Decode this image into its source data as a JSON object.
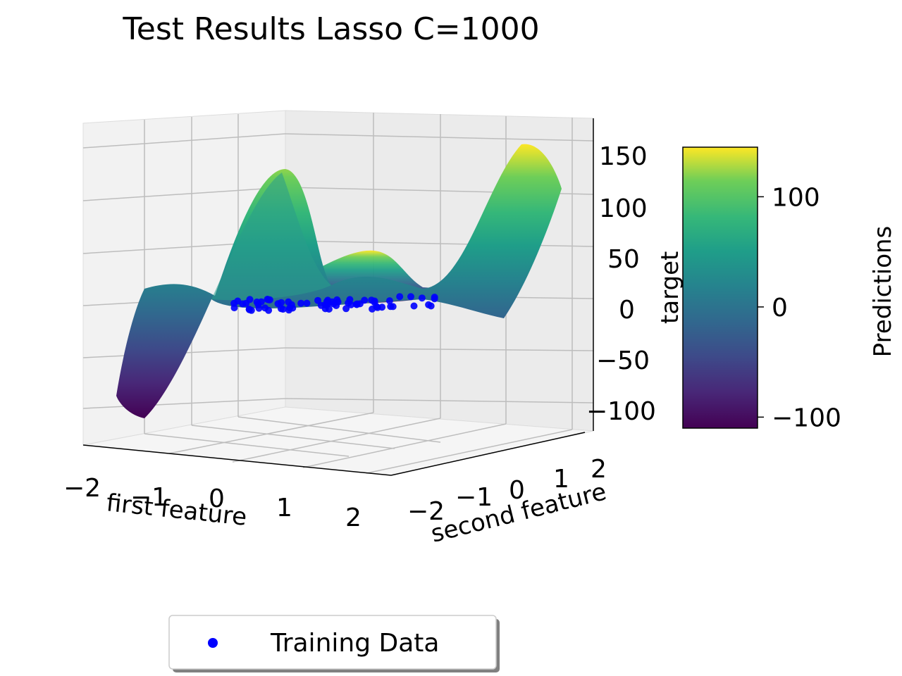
{
  "chart_data": {
    "type": "surface3d",
    "title": "Test Results Lasso C=1000",
    "axes": {
      "x": {
        "label": "first feature",
        "ticks": [
          "−2",
          "−1",
          "0",
          "1",
          "2"
        ],
        "range": [
          -2,
          2
        ]
      },
      "y": {
        "label": "second feature",
        "ticks": [
          "−2",
          "−1",
          "0",
          "1",
          "2"
        ],
        "range": [
          -2,
          2
        ]
      },
      "z": {
        "label": "target",
        "ticks": [
          "−100",
          "−50",
          "0",
          "50",
          "100",
          "150"
        ],
        "range": [
          -120,
          170
        ]
      }
    },
    "surface": {
      "colormap": "viridis",
      "approx_extremes": {
        "min": -115,
        "max": 155
      }
    },
    "training_points": {
      "color": "#0000ff",
      "approx_target": 0
    },
    "colorbar": {
      "label": "Predictions",
      "ticks": [
        "−100",
        "0",
        "100"
      ],
      "range": [
        -110,
        145
      ]
    },
    "legend": {
      "placement": "bottom-center",
      "entries": [
        {
          "label": "Training Data",
          "marker": "dot",
          "color": "#0000ff"
        }
      ]
    },
    "grid": true
  }
}
